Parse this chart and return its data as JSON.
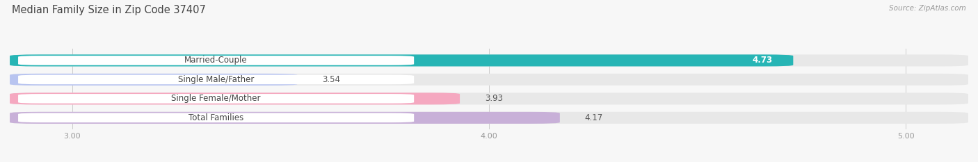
{
  "title": "Median Family Size in Zip Code 37407",
  "source": "Source: ZipAtlas.com",
  "categories": [
    "Married-Couple",
    "Single Male/Father",
    "Single Female/Mother",
    "Total Families"
  ],
  "values": [
    4.73,
    3.54,
    3.93,
    4.17
  ],
  "bar_colors": [
    "#27b5b5",
    "#b8c4f0",
    "#f5a8c0",
    "#c8b0d8"
  ],
  "xlim": [
    2.85,
    5.15
  ],
  "xticks": [
    3.0,
    4.0,
    5.0
  ],
  "xtick_labels": [
    "3.00",
    "4.00",
    "5.00"
  ],
  "background_color": "#f7f7f7",
  "bar_background_color": "#e8e8e8",
  "title_fontsize": 10.5,
  "source_fontsize": 7.5,
  "label_fontsize": 8.5,
  "value_fontsize": 8.5,
  "tick_fontsize": 8,
  "bar_height": 0.62,
  "label_box_color": "#ffffff",
  "label_text_color": "#444444",
  "value_text_color_white": "#ffffff",
  "value_text_color_dark": "#555555",
  "value_inside_threshold": 4.5
}
